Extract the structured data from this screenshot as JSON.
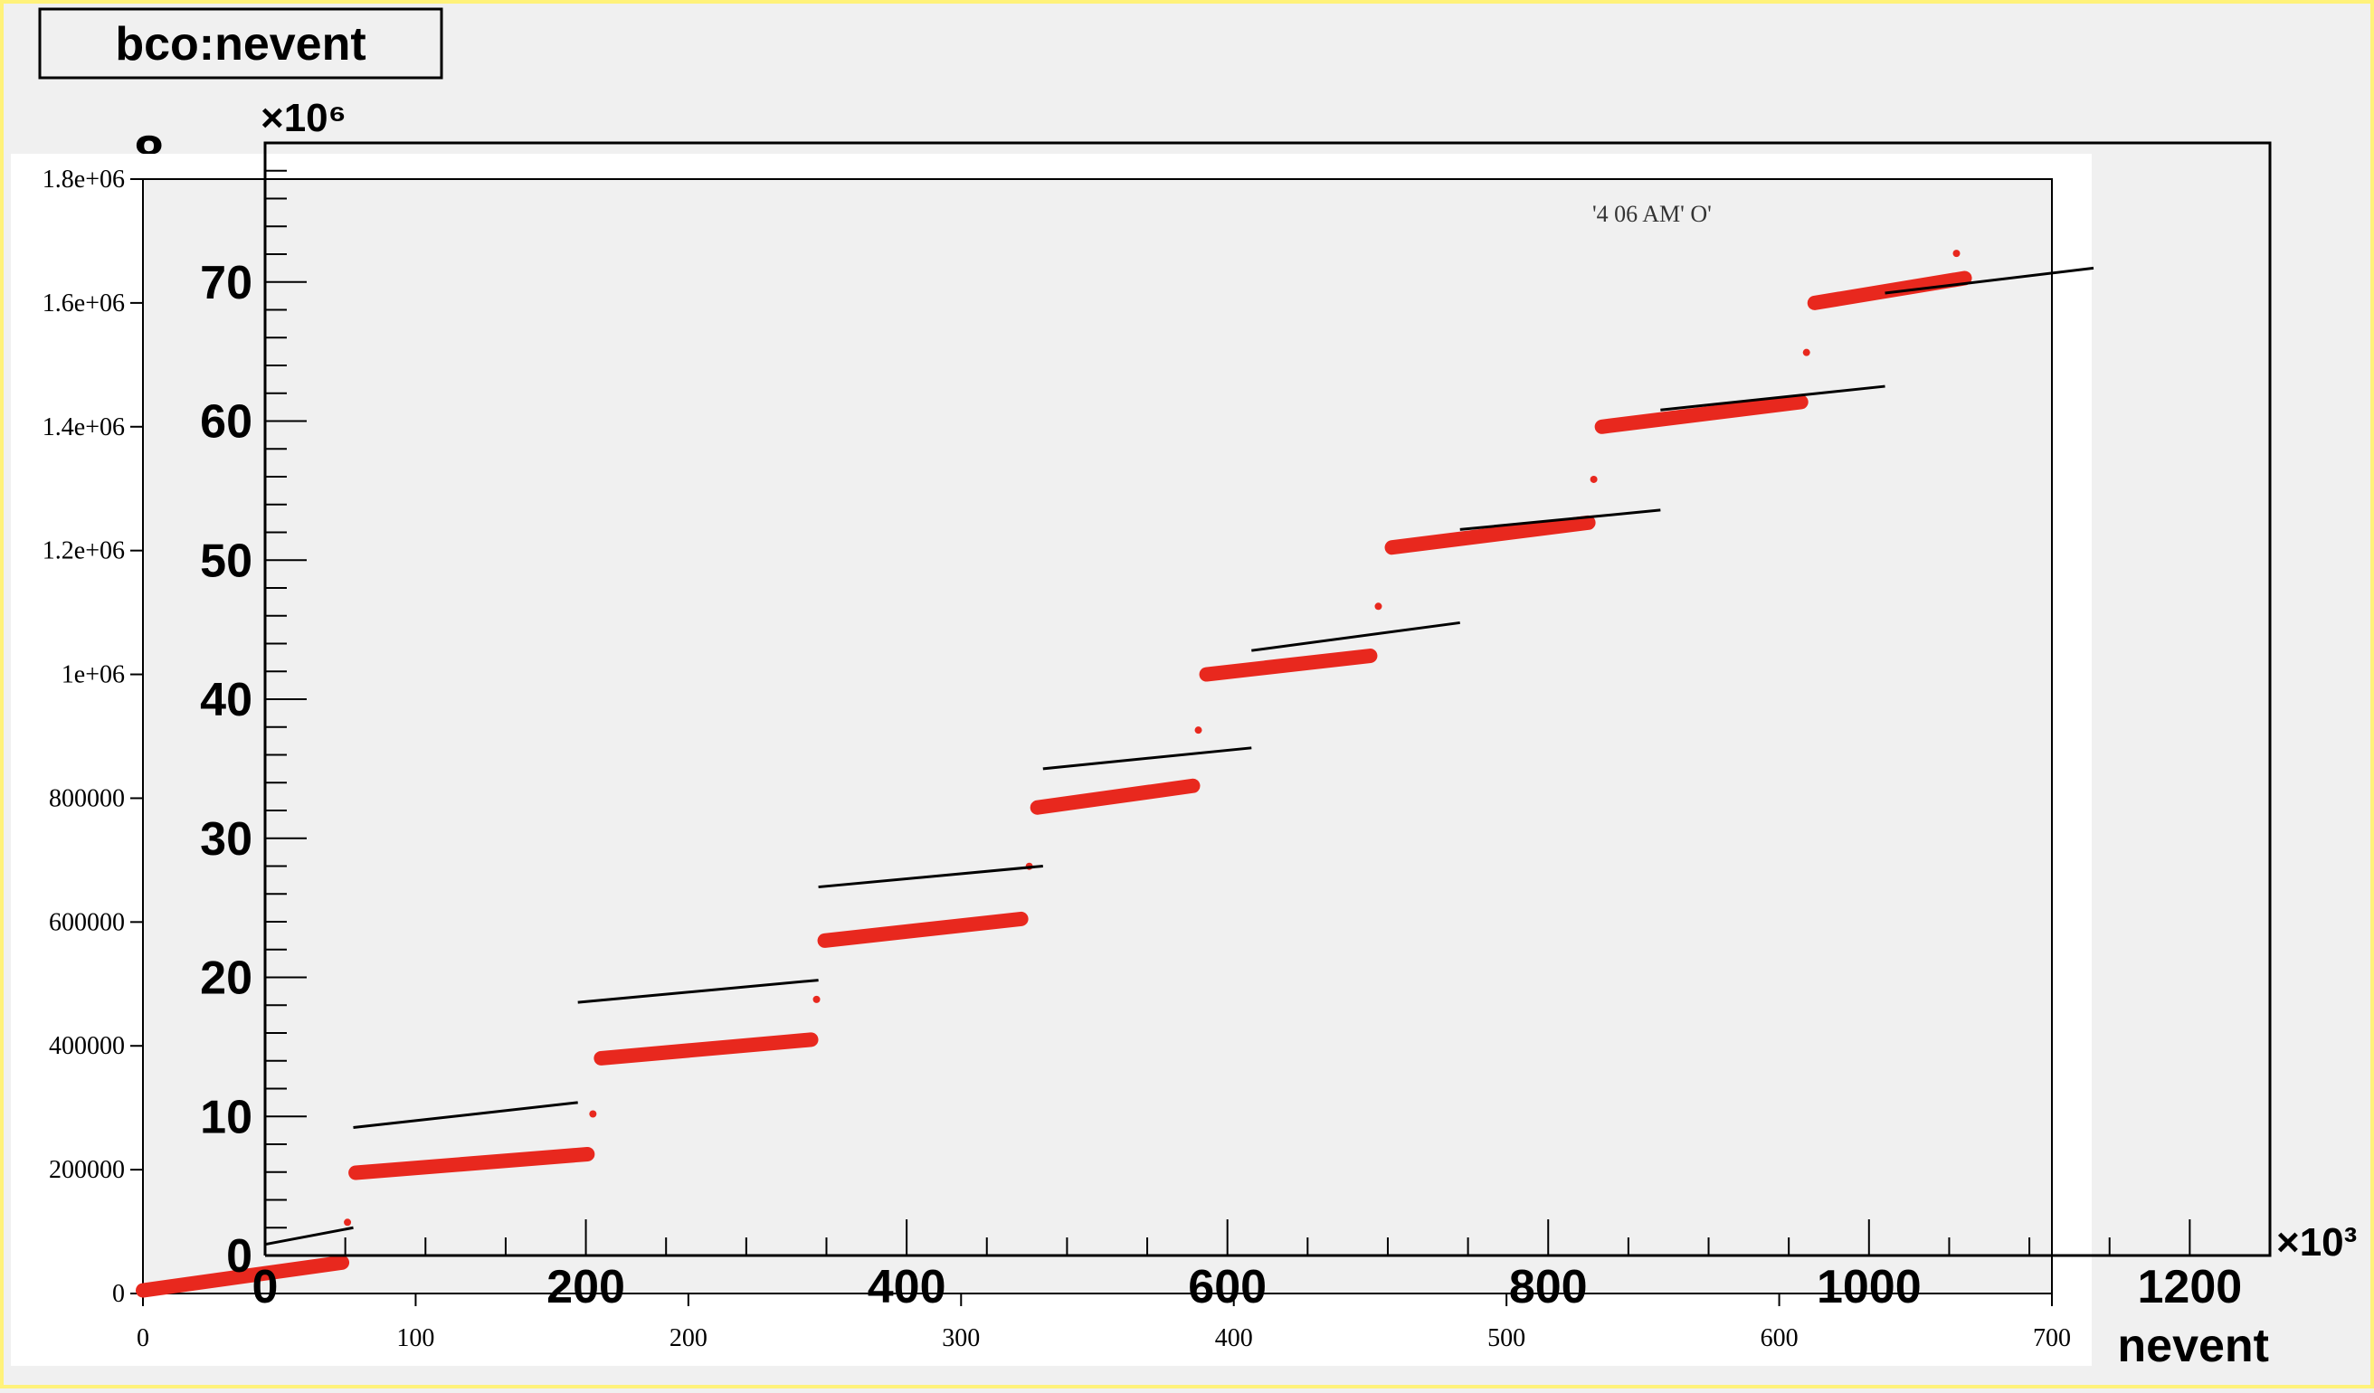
{
  "colors": {
    "frame_border": "#fff27a",
    "pad_background": "#f0f0f0",
    "inner_background": "#ffffff",
    "axis": "#000000",
    "red_series": "#e8281e",
    "black_series": "#000000"
  },
  "chart_data": [
    {
      "type": "scatter",
      "title": "bco:nevent",
      "xlabel": "nevent",
      "x_multiplier": "×10³",
      "y_multiplier": "×10⁶",
      "xlim": [
        0,
        1250
      ],
      "ylim": [
        0,
        80
      ],
      "x_ticks": [
        {
          "value": 0,
          "label": "0"
        },
        {
          "value": 200,
          "label": "200"
        },
        {
          "value": 400,
          "label": "400"
        },
        {
          "value": 600,
          "label": "600"
        },
        {
          "value": 800,
          "label": "800"
        },
        {
          "value": 1000,
          "label": "1000"
        },
        {
          "value": 1200,
          "label": "1200"
        }
      ],
      "y_ticks": [
        {
          "value": 0,
          "label": "0"
        },
        {
          "value": 10,
          "label": "10"
        },
        {
          "value": 20,
          "label": "20"
        },
        {
          "value": 30,
          "label": "30"
        },
        {
          "value": 40,
          "label": "40"
        },
        {
          "value": 50,
          "label": "50"
        },
        {
          "value": 60,
          "label": "60"
        },
        {
          "value": 70,
          "label": "70"
        }
      ],
      "series": [
        {
          "color": "#000000",
          "segments": [
            {
              "x": [
                0,
                55
              ],
              "y": [
                0.8,
                2.0
              ]
            },
            {
              "x": [
                55,
                195
              ],
              "y": [
                9.2,
                11.0
              ]
            },
            {
              "x": [
                195,
                345
              ],
              "y": [
                18.2,
                19.8
              ]
            },
            {
              "x": [
                345,
                485
              ],
              "y": [
                26.5,
                28.0
              ]
            },
            {
              "x": [
                485,
                615
              ],
              "y": [
                35.0,
                36.5
              ]
            },
            {
              "x": [
                615,
                745
              ],
              "y": [
                43.5,
                45.5
              ]
            },
            {
              "x": [
                745,
                870
              ],
              "y": [
                52.2,
                53.6
              ]
            },
            {
              "x": [
                870,
                1010
              ],
              "y": [
                60.8,
                62.5
              ]
            },
            {
              "x": [
                1010,
                1140
              ],
              "y": [
                69.2,
                71.0
              ]
            }
          ]
        }
      ]
    },
    {
      "type": "scatter",
      "xlim": [
        0,
        700
      ],
      "ylim": [
        0,
        1800000
      ],
      "x_ticks": [
        {
          "value": 0,
          "label": "0"
        },
        {
          "value": 100,
          "label": "100"
        },
        {
          "value": 200,
          "label": "200"
        },
        {
          "value": 300,
          "label": "300"
        },
        {
          "value": 400,
          "label": "400"
        },
        {
          "value": 500,
          "label": "500"
        },
        {
          "value": 600,
          "label": "600"
        },
        {
          "value": 700,
          "label": "700"
        }
      ],
      "y_ticks": [
        {
          "value": 0,
          "label": "0"
        },
        {
          "value": 200000,
          "label": "200000"
        },
        {
          "value": 400000,
          "label": "400000"
        },
        {
          "value": 600000,
          "label": "600000"
        },
        {
          "value": 800000,
          "label": "800000"
        },
        {
          "value": 1000000,
          "label": "1e+06"
        },
        {
          "value": 1200000,
          "label": "1.2e+06"
        },
        {
          "value": 1400000,
          "label": "1.4e+06"
        },
        {
          "value": 1600000,
          "label": "1.6e+06"
        },
        {
          "value": 1800000,
          "label": "1.8e+06"
        }
      ],
      "annotation": "'4 06 AM' O'",
      "series": [
        {
          "color": "#e8281e",
          "segments": [
            {
              "x": [
                0,
                73
              ],
              "y": [
                5000,
                50000
              ]
            },
            {
              "x": [
                78,
                163
              ],
              "y": [
                195000,
                225000
              ]
            },
            {
              "x": [
                168,
                245
              ],
              "y": [
                380000,
                410000
              ]
            },
            {
              "x": [
                250,
                322
              ],
              "y": [
                570000,
                605000
              ]
            },
            {
              "x": [
                328,
                385
              ],
              "y": [
                785000,
                820000
              ]
            },
            {
              "x": [
                390,
                450
              ],
              "y": [
                1000000,
                1030000
              ]
            },
            {
              "x": [
                458,
                530
              ],
              "y": [
                1205000,
                1245000
              ]
            },
            {
              "x": [
                535,
                608
              ],
              "y": [
                1400000,
                1440000
              ]
            },
            {
              "x": [
                613,
                668
              ],
              "y": [
                1600000,
                1640000
              ]
            }
          ],
          "transitions": [
            {
              "x": 75,
              "y": 115000
            },
            {
              "x": 165,
              "y": 290000
            },
            {
              "x": 247,
              "y": 475000
            },
            {
              "x": 325,
              "y": 690000
            },
            {
              "x": 387,
              "y": 910000
            },
            {
              "x": 453,
              "y": 1110000
            },
            {
              "x": 532,
              "y": 1315000
            },
            {
              "x": 610,
              "y": 1520000
            },
            {
              "x": 665,
              "y": 1680000
            }
          ]
        }
      ]
    }
  ]
}
